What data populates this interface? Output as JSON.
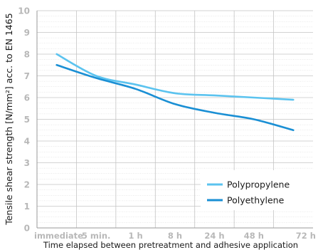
{
  "chart_data": {
    "type": "line",
    "ylabel": "Tensile shear strength [N/mm²] acc. to EN 1465",
    "xlabel": "Time elapsed between pretreatment and adhesive application",
    "categories": [
      "immediate",
      "5 min.",
      "1 h",
      "8 h",
      "24 h",
      "48 h",
      "72 h"
    ],
    "ylim": [
      0,
      10
    ],
    "yticks": [
      0,
      1,
      2,
      3,
      4,
      5,
      6,
      7,
      8,
      9,
      10
    ],
    "grid": true,
    "legend_position": "bottom-right",
    "series": [
      {
        "name": "Polypropylene",
        "color": "#5bc3ef",
        "values": [
          8.0,
          7.0,
          6.6,
          6.2,
          6.1,
          6.0,
          5.9
        ]
      },
      {
        "name": "Polyethylene",
        "color": "#1a8fd4",
        "values": [
          7.5,
          6.9,
          6.4,
          5.7,
          5.3,
          5.0,
          4.5
        ]
      }
    ]
  }
}
